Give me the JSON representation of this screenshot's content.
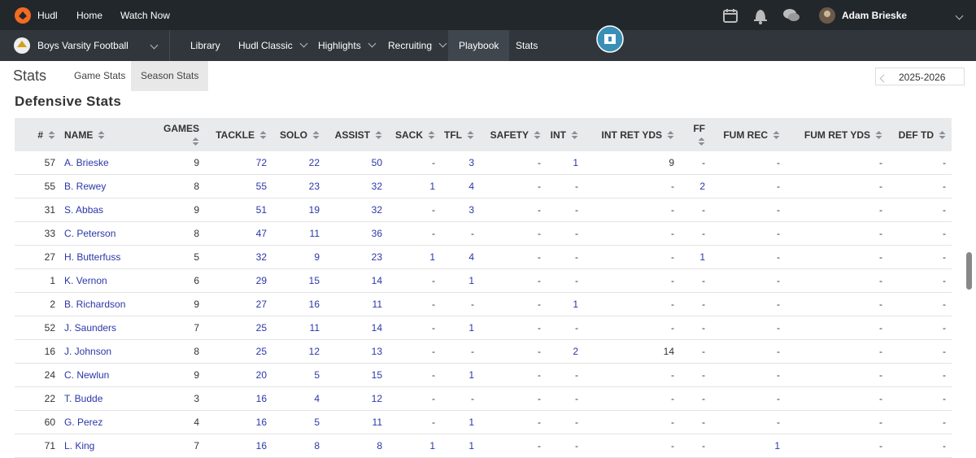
{
  "nav": {
    "brand": "Hudl",
    "links": [
      "Home",
      "Watch Now"
    ],
    "user": "Adam Brieske"
  },
  "subnav": {
    "team": "Boys Varsity Football",
    "items": [
      "Library",
      "Hudl Classic",
      "Highlights",
      "Recruiting",
      "Playbook",
      "Stats"
    ]
  },
  "header": {
    "title": "Stats",
    "tabs": [
      "Game Stats",
      "Season Stats"
    ],
    "season": "2025-2026"
  },
  "section": {
    "title": "Defensive Stats"
  },
  "table": {
    "columns": [
      "#",
      "NAME",
      "GAMES",
      "TACKLE",
      "SOLO",
      "ASSIST",
      "SACK",
      "TFL",
      "SAFETY",
      "INT",
      "INT RET YDS",
      "FF",
      "FUM REC",
      "FUM RET YDS",
      "DEF TD"
    ],
    "rows": [
      [
        57,
        "A. Brieske",
        9,
        72,
        22,
        50,
        "-",
        3,
        "-",
        1,
        9,
        "-",
        "-",
        "-",
        "-"
      ],
      [
        55,
        "B. Rewey",
        8,
        55,
        23,
        32,
        1,
        4,
        "-",
        "-",
        "-",
        2,
        "-",
        "-",
        "-"
      ],
      [
        31,
        "S. Abbas",
        9,
        51,
        19,
        32,
        "-",
        3,
        "-",
        "-",
        "-",
        "-",
        "-",
        "-",
        "-"
      ],
      [
        33,
        "C. Peterson",
        8,
        47,
        11,
        36,
        "-",
        "-",
        "-",
        "-",
        "-",
        "-",
        "-",
        "-",
        "-"
      ],
      [
        27,
        "H. Butterfuss",
        5,
        32,
        9,
        23,
        1,
        4,
        "-",
        "-",
        "-",
        1,
        "-",
        "-",
        "-"
      ],
      [
        1,
        "K. Vernon",
        6,
        29,
        15,
        14,
        "-",
        1,
        "-",
        "-",
        "-",
        "-",
        "-",
        "-",
        "-"
      ],
      [
        2,
        "B. Richardson",
        9,
        27,
        16,
        11,
        "-",
        "-",
        "-",
        1,
        "-",
        "-",
        "-",
        "-",
        "-"
      ],
      [
        52,
        "J. Saunders",
        7,
        25,
        11,
        14,
        "-",
        1,
        "-",
        "-",
        "-",
        "-",
        "-",
        "-",
        "-"
      ],
      [
        16,
        "J. Johnson",
        8,
        25,
        12,
        13,
        "-",
        "-",
        "-",
        2,
        14,
        "-",
        "-",
        "-",
        "-"
      ],
      [
        24,
        "C. Newlun",
        9,
        20,
        5,
        15,
        "-",
        1,
        "-",
        "-",
        "-",
        "-",
        "-",
        "-",
        "-"
      ],
      [
        22,
        "T. Budde",
        3,
        16,
        4,
        12,
        "-",
        "-",
        "-",
        "-",
        "-",
        "-",
        "-",
        "-",
        "-"
      ],
      [
        60,
        "G. Perez",
        4,
        16,
        5,
        11,
        "-",
        1,
        "-",
        "-",
        "-",
        "-",
        "-",
        "-",
        "-"
      ],
      [
        71,
        "L. King",
        7,
        16,
        8,
        8,
        1,
        1,
        "-",
        "-",
        "-",
        "-",
        1,
        "-",
        "-"
      ]
    ]
  }
}
